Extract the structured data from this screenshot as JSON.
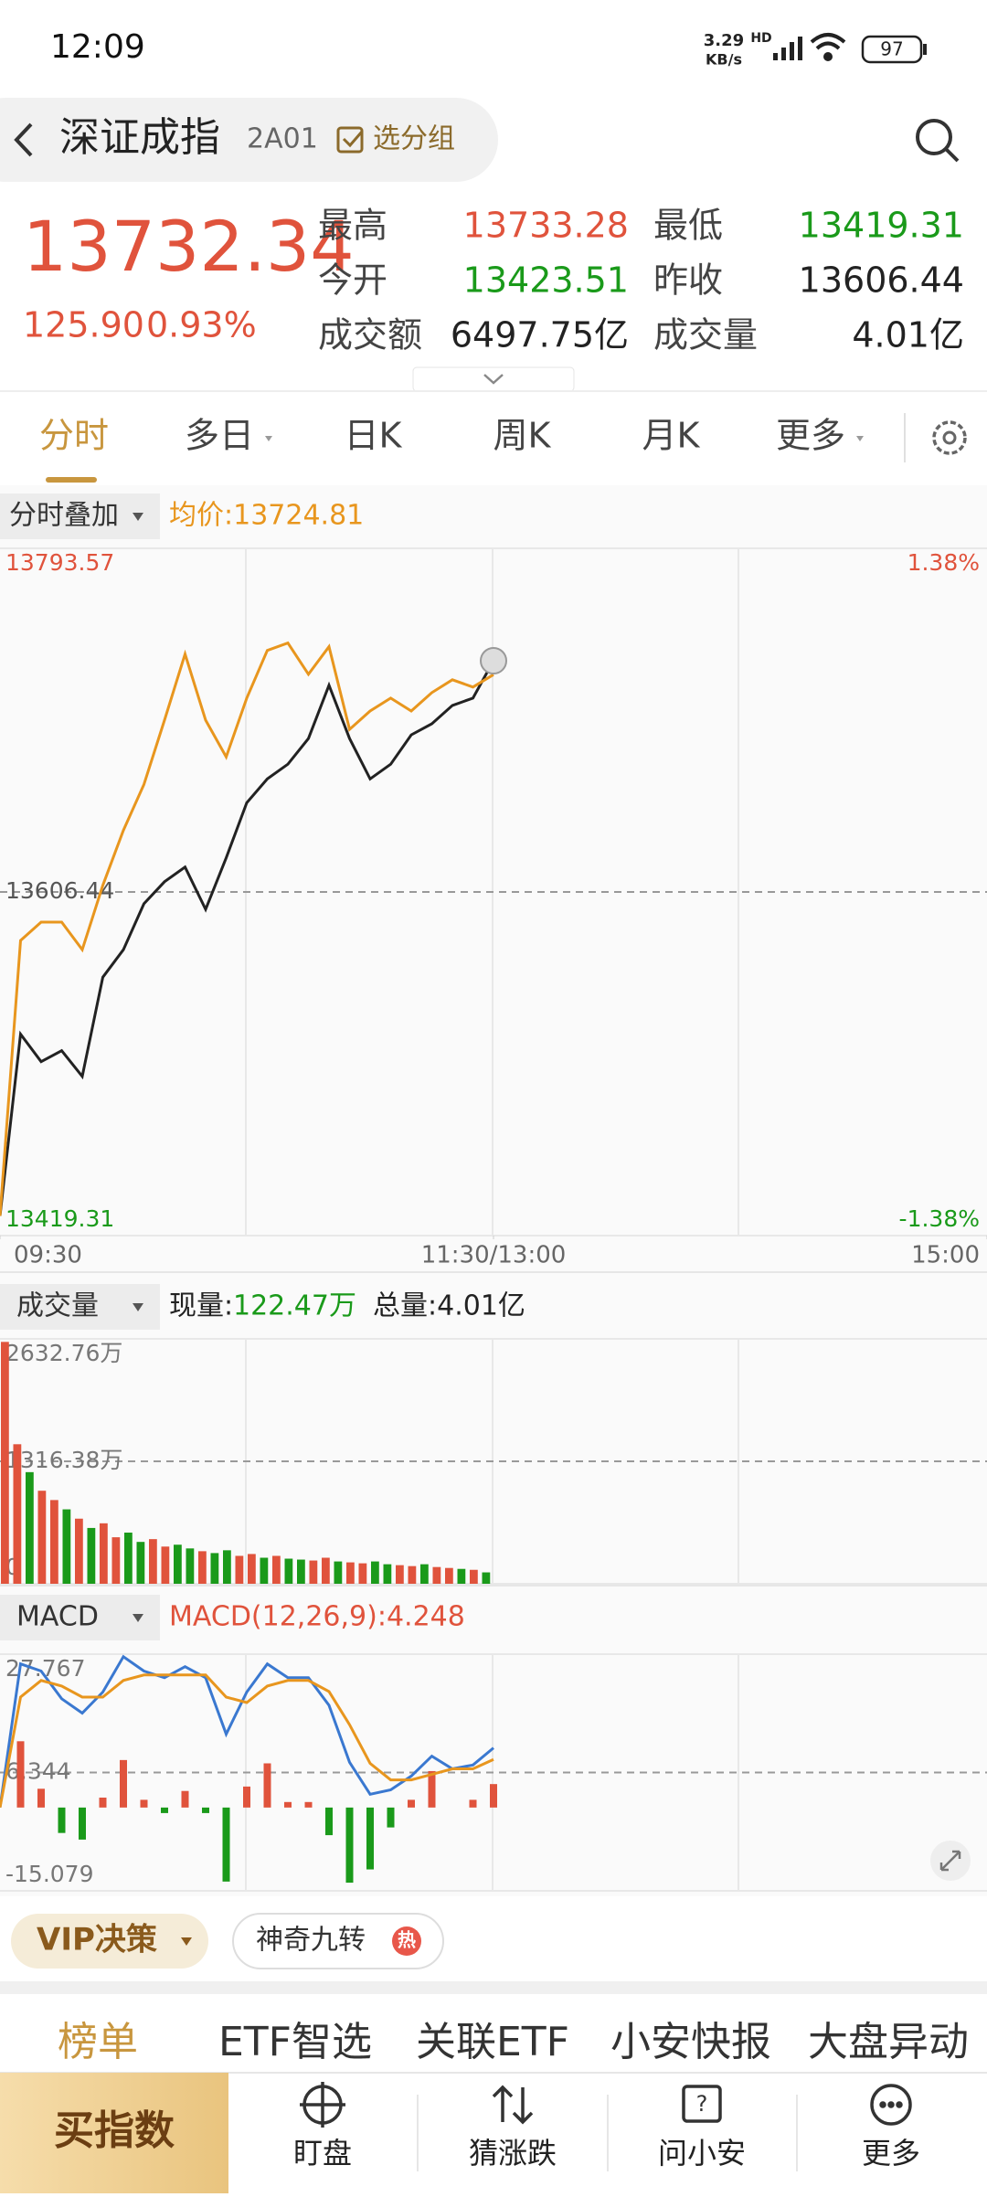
{
  "status": {
    "time": "12:09",
    "speed": "3.29",
    "speed_unit": "KB/s",
    "hd": "HD",
    "battery": "97"
  },
  "header": {
    "title": "深证成指",
    "code": "2A01",
    "group": "选分组"
  },
  "quote": {
    "price": "13732.34",
    "change": "125.90",
    "pct": "0.93%",
    "stats": [
      {
        "label": "最高",
        "value": "13733.28",
        "color": "#e0533c"
      },
      {
        "label": "最低",
        "value": "13419.31",
        "color": "#1a9a1a"
      },
      {
        "label": "今开",
        "value": "13423.51",
        "color": "#1a9a1a"
      },
      {
        "label": "昨收",
        "value": "13606.44",
        "color": "#222222"
      },
      {
        "label": "成交额",
        "value": "6497.75亿",
        "color": "#222222"
      },
      {
        "label": "成交量",
        "value": "4.01亿",
        "color": "#222222"
      }
    ]
  },
  "tabs": [
    "分时",
    "多日",
    "日K",
    "周K",
    "月K",
    "更多"
  ],
  "chart_data": [
    {
      "type": "line",
      "overlay_label": "分时叠加",
      "avg_label": "均价:13724.81",
      "xlim": [
        0,
        240
      ],
      "xticks": [
        {
          "value": 0,
          "label": "09:30"
        },
        {
          "value": 120,
          "label": "11:30/13:00"
        },
        {
          "value": 240,
          "label": "15:00"
        }
      ],
      "ylim": [
        13419.31,
        13793.57
      ],
      "yticks": [
        13793.57,
        13606.44,
        13419.31
      ],
      "y2lim": [
        -1.38,
        1.38
      ],
      "y2ticks": [
        {
          "value": 1.38,
          "label": "1.38%"
        },
        {
          "value": -1.38,
          "label": "-1.38%"
        }
      ],
      "x": [
        0,
        5,
        10,
        15,
        20,
        25,
        30,
        35,
        40,
        45,
        50,
        55,
        60,
        65,
        70,
        75,
        80,
        85,
        90,
        95,
        100,
        105,
        110,
        115,
        120
      ],
      "series": [
        {
          "color": "#222222",
          "values": [
            13430,
            13529,
            13514,
            13520,
            13506,
            13560,
            13575,
            13600,
            13612,
            13620,
            13597,
            13625,
            13655,
            13668,
            13676,
            13690,
            13719,
            13690,
            13668,
            13676,
            13692,
            13698,
            13708,
            13712,
            13732.34
          ]
        },
        {
          "color": "#e8961e",
          "values": [
            13430,
            13580,
            13590,
            13590,
            13575,
            13610,
            13640,
            13665,
            13700,
            13736,
            13700,
            13680,
            13712,
            13738,
            13742,
            13725,
            13740,
            13695,
            13705,
            13712,
            13705,
            13715,
            13722,
            13718,
            13724.81
          ]
        }
      ]
    },
    {
      "type": "bar",
      "label": "成交量",
      "now_label": "现量:",
      "now_value": "122.47万",
      "total_label": "总量:4.01亿",
      "xlim": [
        0,
        240
      ],
      "ylim": [
        0,
        2632.76
      ],
      "yticks": [
        {
          "value": 2632.76,
          "label": "2632.76万"
        },
        {
          "value": 1316.38,
          "label": "1316.38万"
        },
        0
      ],
      "x": [
        0,
        3,
        6,
        9,
        12,
        15,
        18,
        21,
        24,
        27,
        30,
        33,
        36,
        39,
        42,
        45,
        48,
        51,
        54,
        57,
        60,
        63,
        66,
        69,
        72,
        75,
        78,
        81,
        84,
        87,
        90,
        93,
        96,
        99,
        102,
        105,
        108,
        111,
        114,
        117
      ],
      "series": [
        {
          "color": "#e0533c",
          "values": [
            2600,
            1500,
            null,
            1000,
            900,
            null,
            700,
            null,
            650,
            500,
            null,
            null,
            480,
            400,
            null,
            null,
            350,
            null,
            null,
            300,
            320,
            null,
            300,
            null,
            null,
            250,
            280,
            null,
            230,
            220,
            null,
            null,
            200,
            190,
            null,
            180,
            170,
            null,
            150,
            null
          ]
        },
        {
          "color": "#1a9a1a",
          "values": [
            null,
            null,
            1200,
            null,
            null,
            800,
            null,
            600,
            null,
            null,
            550,
            450,
            null,
            null,
            420,
            380,
            null,
            330,
            360,
            null,
            null,
            280,
            null,
            270,
            260,
            null,
            null,
            240,
            null,
            null,
            240,
            210,
            null,
            null,
            210,
            null,
            null,
            160,
            null,
            122.47
          ]
        }
      ]
    },
    {
      "type": "macd",
      "label": "MACD",
      "value_label": "MACD(12,26,9):4.248",
      "xlim": [
        0,
        240
      ],
      "ylim": [
        -15.079,
        27.767
      ],
      "yticks": [
        27.767,
        6.344,
        -15.079
      ],
      "x": [
        0,
        5,
        10,
        15,
        20,
        25,
        30,
        35,
        40,
        45,
        50,
        55,
        60,
        65,
        70,
        75,
        80,
        85,
        90,
        95,
        100,
        105,
        110,
        115,
        120
      ],
      "series": [
        {
          "color": "#3a78d0",
          "values": [
            0,
            26.0,
            24.7,
            19.7,
            17.1,
            20.9,
            27.3,
            24.7,
            23.5,
            25.5,
            23.5,
            13.3,
            20.9,
            26.0,
            23.5,
            23.5,
            18.5,
            8.2,
            2.4,
            3.2,
            5.7,
            9.3,
            7.0,
            7.7,
            10.8
          ]
        },
        {
          "color": "#e8961e",
          "values": [
            0,
            20,
            23,
            22,
            20,
            20,
            23,
            24,
            24,
            24,
            24,
            20,
            19,
            22,
            23,
            23,
            21,
            15,
            8,
            5,
            5,
            6,
            7,
            7,
            8.7
          ]
        }
      ],
      "histogram": {
        "color_pos": "#e0533c",
        "color_neg": "#1a9a1a",
        "values": [
          0,
          12,
          3.4,
          -4.6,
          -5.8,
          1.8,
          8.6,
          1.4,
          -1,
          3,
          -1,
          -13.4,
          3.8,
          8,
          1,
          1,
          -5,
          -13.6,
          -11.2,
          -3.6,
          1.4,
          6.6,
          0,
          1.4,
          4.248
        ]
      }
    }
  ],
  "tools": {
    "vip": "VIP决策",
    "nine": "神奇九转",
    "hot": "热"
  },
  "sections": [
    "榜单",
    "ETF智选",
    "关联ETF",
    "小安快报",
    "大盘异动"
  ],
  "bottom": {
    "buy": "买指数",
    "nav": [
      "盯盘",
      "猜涨跌",
      "问小安",
      "更多"
    ]
  }
}
